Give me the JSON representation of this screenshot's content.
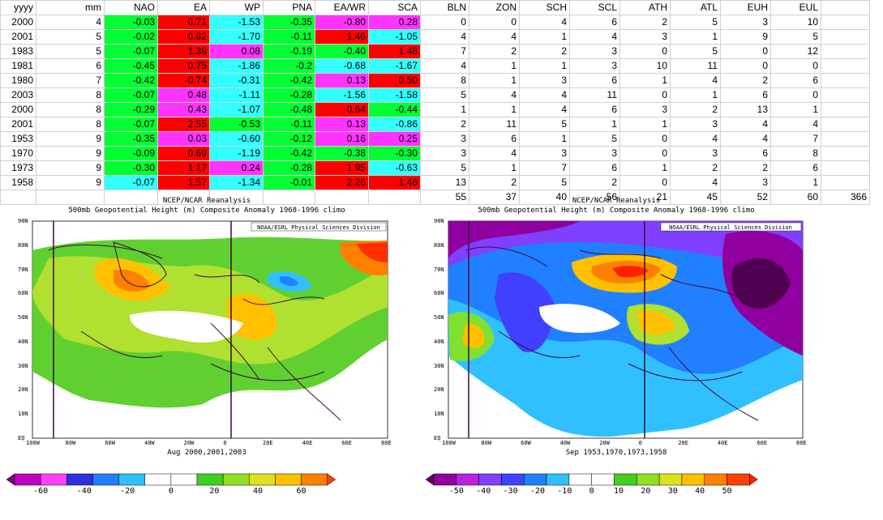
{
  "table": {
    "headers": [
      "yyyy",
      "mm",
      "NAO",
      "EA",
      "WP",
      "PNA",
      "EA/WR",
      "SCA",
      "BLN",
      "ZON",
      "SCH",
      "SCL",
      "ATH",
      "ATL",
      "EUH",
      "EUL",
      ""
    ],
    "rows": [
      {
        "cells": [
          "2000",
          "4",
          "-0.03",
          "0.71",
          "-1.53",
          "-0.35",
          "-0.80",
          "0.28",
          "0",
          "0",
          "4",
          "6",
          "2",
          "5",
          "3",
          "10",
          ""
        ],
        "colors": [
          "",
          "",
          "g",
          "r",
          "c",
          "g",
          "m",
          "m",
          "",
          "",
          "",
          "",
          "",
          "",
          "",
          "",
          ""
        ]
      },
      {
        "cells": [
          "2001",
          "5",
          "-0.02",
          "0.62",
          "-1.70",
          "-0.11",
          "1.46",
          "-1.05",
          "4",
          "4",
          "1",
          "4",
          "3",
          "1",
          "9",
          "5",
          ""
        ],
        "colors": [
          "",
          "",
          "g",
          "r",
          "c",
          "g",
          "r",
          "c",
          "",
          "",
          "",
          "",
          "",
          "",
          "",
          "",
          ""
        ]
      },
      {
        "cells": [
          "1983",
          "5",
          "-0.07",
          "1.39",
          "0.08",
          "-0.19",
          "-0.40",
          "1.48",
          "7",
          "2",
          "2",
          "3",
          "0",
          "5",
          "0",
          "12",
          ""
        ],
        "colors": [
          "",
          "",
          "g",
          "r",
          "m",
          "g",
          "g",
          "r",
          "",
          "",
          "",
          "",
          "",
          "",
          "",
          "",
          ""
        ]
      },
      {
        "cells": [
          "1981",
          "6",
          "-0.45",
          "0.75",
          "-1.86",
          "-0.2",
          "-0.68",
          "-1.67",
          "4",
          "1",
          "1",
          "3",
          "10",
          "11",
          "0",
          "0",
          ""
        ],
        "colors": [
          "",
          "",
          "g",
          "r",
          "c",
          "g",
          "c",
          "c",
          "",
          "",
          "",
          "",
          "",
          "",
          "",
          "",
          ""
        ]
      },
      {
        "cells": [
          "1980",
          "7",
          "-0.42",
          "-0.74",
          "-0.31",
          "-0.42",
          "0.13",
          "0.50",
          "8",
          "1",
          "3",
          "6",
          "1",
          "4",
          "2",
          "6",
          ""
        ],
        "colors": [
          "",
          "",
          "g",
          "r",
          "c",
          "g",
          "m",
          "r",
          "",
          "",
          "",
          "",
          "",
          "",
          "",
          "",
          ""
        ]
      },
      {
        "cells": [
          "2003",
          "8",
          "-0.07",
          "0.48",
          "-1.11",
          "-0.28",
          "-1.56",
          "-1.58",
          "5",
          "4",
          "4",
          "11",
          "0",
          "1",
          "6",
          "0",
          ""
        ],
        "colors": [
          "",
          "",
          "g",
          "m",
          "c",
          "g",
          "c",
          "c",
          "",
          "",
          "",
          "",
          "",
          "",
          "",
          "",
          ""
        ]
      },
      {
        "cells": [
          "2000",
          "8",
          "-0.29",
          "0.43",
          "-1.07",
          "-0.48",
          "0.64",
          "-0.44",
          "1",
          "1",
          "4",
          "6",
          "3",
          "2",
          "13",
          "1",
          ""
        ],
        "colors": [
          "",
          "",
          "g",
          "m",
          "c",
          "g",
          "r",
          "g",
          "",
          "",
          "",
          "",
          "",
          "",
          "",
          "",
          ""
        ]
      },
      {
        "cells": [
          "2001",
          "8",
          "-0.07",
          "2.55",
          "-0.53",
          "-0.11",
          "0.13",
          "-0.86",
          "2",
          "11",
          "5",
          "1",
          "1",
          "3",
          "4",
          "4",
          ""
        ],
        "colors": [
          "",
          "",
          "g",
          "r",
          "g",
          "g",
          "m",
          "c",
          "",
          "",
          "",
          "",
          "",
          "",
          "",
          "",
          ""
        ]
      },
      {
        "cells": [
          "1953",
          "9",
          "-0.35",
          "0.03",
          "-0.60",
          "-0.12",
          "0.16",
          "0.25",
          "3",
          "6",
          "1",
          "5",
          "0",
          "4",
          "4",
          "7",
          ""
        ],
        "colors": [
          "",
          "",
          "g",
          "m",
          "c",
          "g",
          "m",
          "m",
          "",
          "",
          "",
          "",
          "",
          "",
          "",
          "",
          ""
        ]
      },
      {
        "cells": [
          "1970",
          "9",
          "-0.09",
          "0.69",
          "-1.19",
          "-0.42",
          "-0.38",
          "-0.30",
          "3",
          "4",
          "3",
          "3",
          "0",
          "3",
          "6",
          "8",
          ""
        ],
        "colors": [
          "",
          "",
          "g",
          "r",
          "c",
          "g",
          "g",
          "g",
          "",
          "",
          "",
          "",
          "",
          "",
          "",
          "",
          ""
        ]
      },
      {
        "cells": [
          "1973",
          "9",
          "-0.30",
          "1.17",
          "0.24",
          "-0.28",
          "1.95",
          "-0.63",
          "5",
          "1",
          "7",
          "6",
          "1",
          "2",
          "2",
          "6",
          ""
        ],
        "colors": [
          "",
          "",
          "g",
          "r",
          "m",
          "g",
          "r",
          "c",
          "",
          "",
          "",
          "",
          "",
          "",
          "",
          "",
          ""
        ]
      },
      {
        "cells": [
          "1958",
          "9",
          "-0.07",
          "1.57",
          "-1.34",
          "-0.01",
          "2.26",
          "1.46",
          "13",
          "2",
          "5",
          "2",
          "0",
          "4",
          "3",
          "1",
          ""
        ],
        "colors": [
          "",
          "",
          "c",
          "r",
          "c",
          "g",
          "r",
          "r",
          "",
          "",
          "",
          "",
          "",
          "",
          "",
          "",
          ""
        ]
      },
      {
        "cells": [
          "",
          "",
          "",
          "",
          "",
          "",
          "",
          "",
          "55",
          "37",
          "40",
          "56",
          "21",
          "45",
          "52",
          "60",
          "366"
        ],
        "colors": [
          "",
          "",
          "",
          "",
          "",
          "",
          "",
          "",
          "",
          "",
          "",
          "",
          "",
          "",
          "",
          "",
          ""
        ]
      }
    ]
  },
  "map_left": {
    "title1": "NCEP/NCAR Reanalysis",
    "title2": "500mb Geopotential Height (m) Composite Anomaly 1968-1996 climo",
    "credit": "NOAA/ESRL Physical Sciences Division",
    "caption": "Aug 2000,2001,2003",
    "lat_labels": [
      "90N",
      "80N",
      "70N",
      "60N",
      "50N",
      "40N",
      "30N",
      "20N",
      "10N",
      "EQ"
    ],
    "lon_labels": [
      "100W",
      "80W",
      "60W",
      "40W",
      "20W",
      "0",
      "20E",
      "40E",
      "60E",
      "80E"
    ],
    "colorbar_labels": [
      "-60",
      "-40",
      "-20",
      "0",
      "20",
      "40",
      "60"
    ],
    "colorbar_colors": [
      "#800080",
      "#c000c0",
      "#ff40ff",
      "#3030e0",
      "#2080ff",
      "#30c0ff",
      "#ffffff",
      "#ffffff",
      "#40d020",
      "#90e020",
      "#e0e020",
      "#ffc000",
      "#ff8000",
      "#ff4000"
    ]
  },
  "map_right": {
    "title1": "NCEP/NCAR Reanalysis",
    "title2": "500mb Geopotential Height (m) Composite Anomaly 1968-1996 climo",
    "credit": "NOAA/ESRL Physical Sciences Division",
    "caption": "Sep 1953,1970,1973,1958",
    "lat_labels": [
      "90N",
      "80N",
      "70N",
      "60N",
      "50N",
      "40N",
      "30N",
      "20N",
      "10N",
      "EQ"
    ],
    "lon_labels": [
      "100W",
      "80W",
      "60W",
      "40W",
      "20W",
      "0",
      "20E",
      "40E",
      "60E",
      "80E"
    ],
    "colorbar_labels": [
      "-50",
      "-40",
      "-30",
      "-20",
      "-10",
      "0",
      "10",
      "20",
      "30",
      "40",
      "50"
    ],
    "colorbar_colors": [
      "#600060",
      "#9000a0",
      "#c020e0",
      "#8040ff",
      "#4040ff",
      "#2080ff",
      "#30c0ff",
      "#ffffff",
      "#ffffff",
      "#40d020",
      "#90e020",
      "#e0e020",
      "#ffc000",
      "#ff8000",
      "#ff4000",
      "#ff2000"
    ]
  }
}
